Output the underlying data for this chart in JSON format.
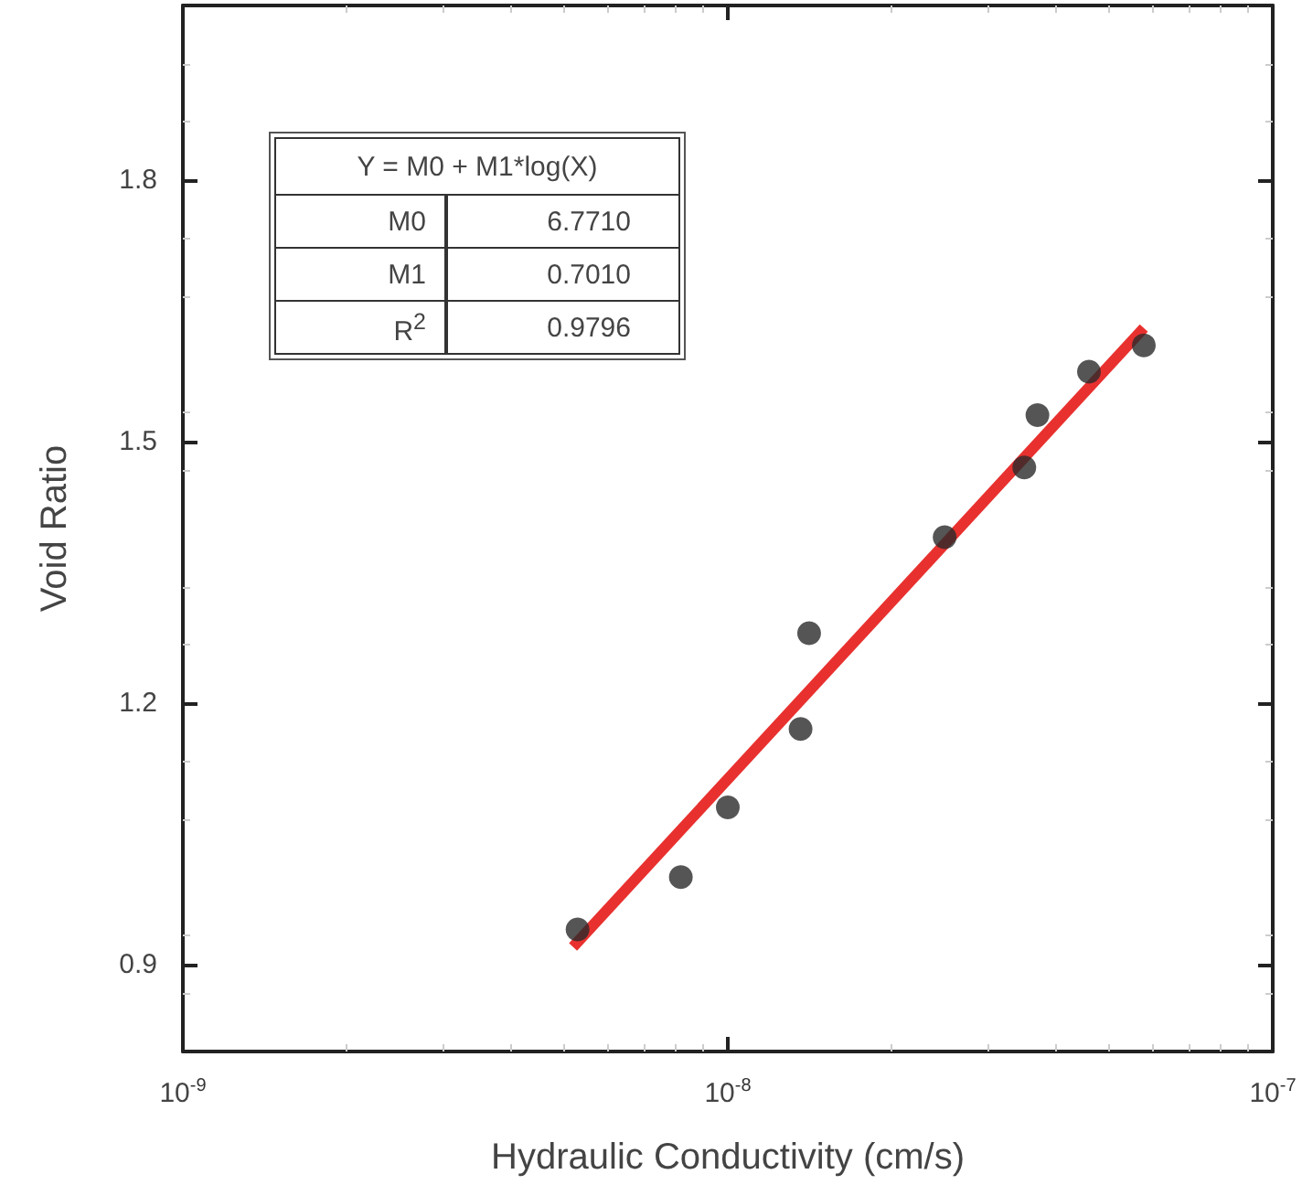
{
  "chart_data": {
    "type": "scatter",
    "xlabel": "Hydraulic Conductivity (cm/s)",
    "ylabel": "Void Ratio",
    "log": "x",
    "marker": "circle",
    "grid": false,
    "xlim": [
      1e-09,
      1e-07
    ],
    "xticks": [
      {
        "value": 1e-09,
        "label": "10$^{-9}$"
      },
      {
        "value": 1e-08,
        "label": "10$^{-8}$"
      },
      {
        "value": 1e-07,
        "label": "10$^{-7}$"
      }
    ],
    "ylim": [
      0.8,
      2.0
    ],
    "yticks": [
      0.9,
      1.2,
      1.5,
      1.8
    ],
    "series": [
      {
        "color": "#2a2a2a",
        "x": [
          5.3e-09,
          8.2e-09,
          1e-08,
          1.36e-08,
          1.41e-08,
          2.5e-08,
          3.5e-08,
          3.7e-08,
          4.6e-08,
          5.8e-08
        ],
        "values": [
          0.94,
          1.0,
          1.08,
          1.17,
          1.28,
          1.39,
          1.47,
          1.53,
          1.58,
          1.61
        ]
      },
      {
        "type": "line",
        "color": "#e8312f",
        "marker": "none",
        "x": [
          5.2e-09,
          5.8e-08
        ],
        "values": [
          0.92,
          1.63
        ]
      }
    ],
    "annotations": [
      "Y = M0 + M1*log(X)",
      "M0",
      "6.7710",
      "M1",
      "0.7010",
      "R$^{2}$",
      "0.9796"
    ]
  }
}
